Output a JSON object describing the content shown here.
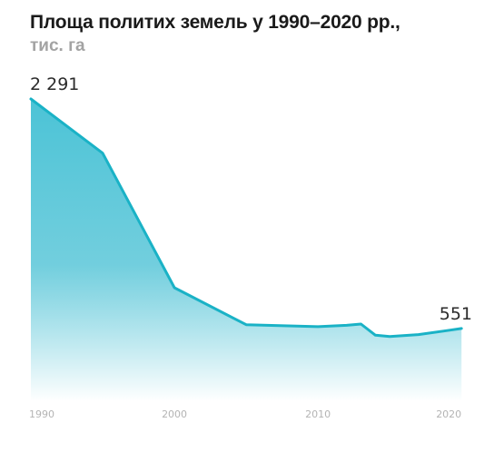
{
  "chart_data": {
    "type": "area",
    "title": "Площа политих земель у 1990–2020 рр.,",
    "subtitle": "тис. га",
    "xlabel": "",
    "ylabel": "",
    "x": [
      1990,
      1995,
      2000,
      2005,
      2010,
      2012,
      2013,
      2014,
      2015,
      2017,
      2019,
      2020
    ],
    "y": [
      2291,
      1880,
      860,
      580,
      565,
      575,
      585,
      500,
      490,
      505,
      535,
      551
    ],
    "xlim": [
      1990,
      2021
    ],
    "ylim": [
      0,
      2291
    ],
    "xticks": [
      1990,
      2000,
      2010,
      2020
    ],
    "data_labels": [
      {
        "x": 1990,
        "text": "2 291"
      },
      {
        "x": 2020,
        "text": "551"
      }
    ],
    "grid": "vertical dashed at 2000 and 2010",
    "colors": {
      "line": "#1ab2c6",
      "fill_top": "#4bc3d6",
      "fill_bottom": "#ffffff"
    }
  }
}
